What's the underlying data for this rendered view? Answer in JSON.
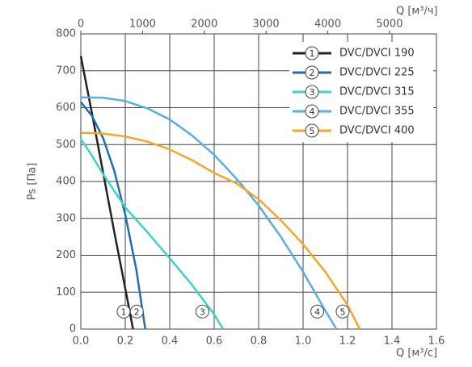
{
  "chart_data": {
    "type": "line",
    "x_label": "Q [м³/с]",
    "x2_label": "Q [м³/ч]",
    "y_label": "Ps [Па]",
    "xlim": [
      0,
      1.6
    ],
    "xticks": [
      {
        "value": 0,
        "label": "0.0"
      },
      0.2,
      0.4,
      0.6,
      0.8,
      {
        "value": 1,
        "label": "1.0"
      },
      1.2,
      1.4,
      1.6
    ],
    "x2lim": [
      0,
      5760
    ],
    "x2ticks": [
      0,
      1000,
      2000,
      3000,
      4000,
      5000
    ],
    "ylim": [
      0,
      800
    ],
    "yticks": [
      0,
      100,
      200,
      300,
      400,
      500,
      600,
      700,
      800
    ],
    "grid": true,
    "legend": "upper right",
    "series": [
      {
        "name": "DVC/DVCI 190",
        "label": "1",
        "color": "#222222",
        "x": [
          0,
          0.05,
          0.1,
          0.15,
          0.2,
          0.235
        ],
        "values": [
          740,
          585,
          425,
          265,
          110,
          0
        ]
      },
      {
        "name": "DVC/DVCI 225",
        "label": "2",
        "color": "#1f6db3",
        "x": [
          0,
          0.05,
          0.1,
          0.15,
          0.2,
          0.25,
          0.29
        ],
        "values": [
          615,
          578,
          518,
          430,
          310,
          160,
          0
        ]
      },
      {
        "name": "DVC/DVCI 315",
        "label": "3",
        "color": "#3fd2c8",
        "x": [
          0,
          0.05,
          0.1,
          0.2,
          0.3,
          0.4,
          0.5,
          0.6,
          0.64
        ],
        "values": [
          515,
          470,
          420,
          330,
          262,
          192,
          120,
          40,
          0
        ]
      },
      {
        "name": "DVC/DVCI 355",
        "label": "4",
        "color": "#5aaee2",
        "x": [
          0,
          0.1,
          0.2,
          0.3,
          0.4,
          0.5,
          0.6,
          0.7,
          0.8,
          0.9,
          1.0,
          1.1,
          1.15
        ],
        "values": [
          628,
          627,
          618,
          598,
          568,
          525,
          472,
          408,
          335,
          250,
          155,
          50,
          0
        ]
      },
      {
        "name": "DVC/DVCI 400",
        "label": "5",
        "color": "#f5a62a",
        "x": [
          0,
          0.1,
          0.2,
          0.3,
          0.4,
          0.5,
          0.6,
          0.7,
          0.8,
          0.9,
          1.0,
          1.1,
          1.2,
          1.255
        ],
        "values": [
          532,
          530,
          522,
          508,
          487,
          458,
          423,
          395,
          352,
          295,
          230,
          155,
          65,
          0
        ]
      }
    ]
  }
}
